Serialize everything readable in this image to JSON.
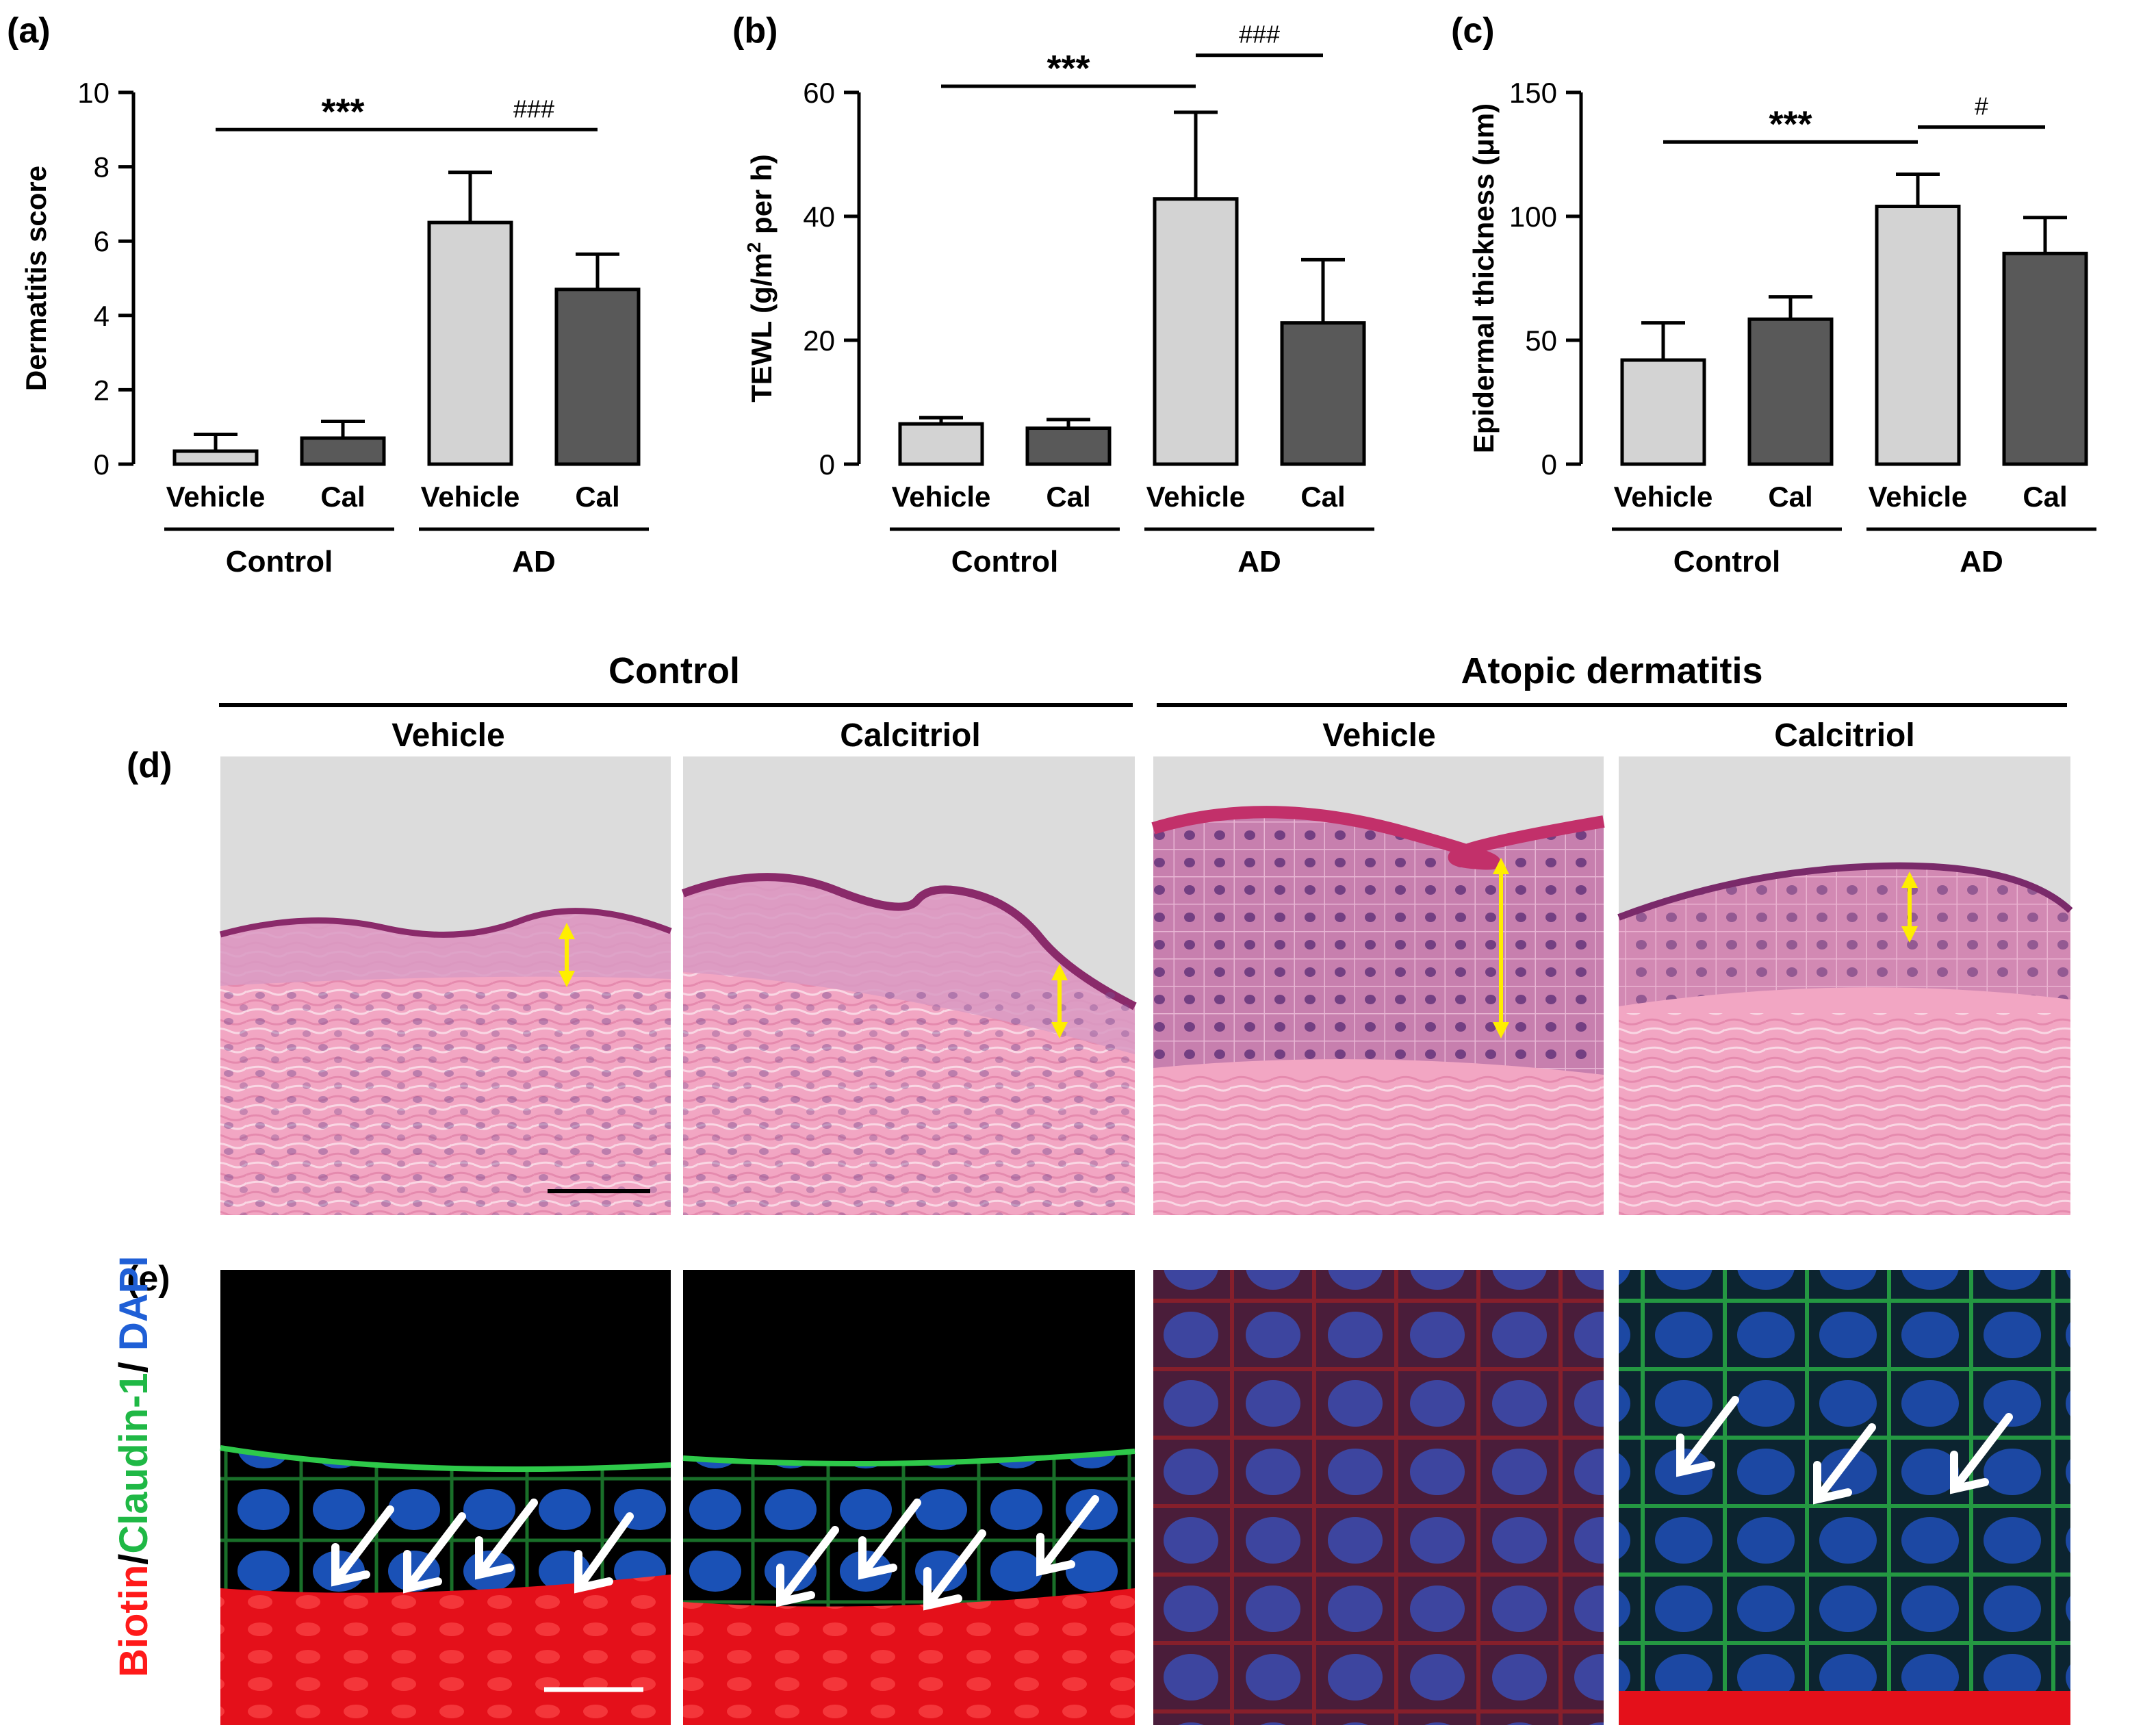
{
  "charts": [
    {
      "panel_label": "(a)",
      "type": "bar",
      "ylabel": "Dermatitis score",
      "ylim": [
        0,
        10
      ],
      "yticks": [
        0,
        2,
        4,
        6,
        8,
        10
      ],
      "categories": [
        "Vehicle",
        "Cal",
        "Vehicle",
        "Cal"
      ],
      "groups": [
        {
          "label": "Control",
          "span": [
            0,
            1
          ]
        },
        {
          "label": "AD",
          "span": [
            2,
            3
          ]
        }
      ],
      "values": [
        0.35,
        0.7,
        6.5,
        4.7
      ],
      "errors": [
        0.45,
        0.45,
        1.35,
        0.95
      ],
      "significance": [
        {
          "from": 0,
          "to": 2,
          "label": "***",
          "level": 9.0
        },
        {
          "from": 2,
          "to": 3,
          "label": "###",
          "level": 9.0
        }
      ]
    },
    {
      "panel_label": "(b)",
      "type": "bar",
      "ylabel": "TEWL (g/m",
      "ylabel_sup": "2",
      "ylabel_tail": " per h)",
      "ylim": [
        0,
        60
      ],
      "yticks": [
        0,
        20,
        40,
        60
      ],
      "categories": [
        "Vehicle",
        "Cal",
        "Vehicle",
        "Cal"
      ],
      "groups": [
        {
          "label": "Control",
          "span": [
            0,
            1
          ]
        },
        {
          "label": "AD",
          "span": [
            2,
            3
          ]
        }
      ],
      "values": [
        6.5,
        5.8,
        42.8,
        22.8
      ],
      "errors": [
        1.0,
        1.4,
        14.0,
        10.2
      ],
      "significance": [
        {
          "from": 0,
          "to": 2,
          "label": "***",
          "level": 61.0
        },
        {
          "from": 2,
          "to": 3,
          "label": "###",
          "level": 66.0
        }
      ]
    },
    {
      "panel_label": "(c)",
      "type": "bar",
      "ylabel": "Epidermal thickness (μm)",
      "ylim": [
        0,
        150
      ],
      "yticks": [
        0,
        50,
        100,
        150
      ],
      "categories": [
        "Vehicle",
        "Cal",
        "Vehicle",
        "Cal"
      ],
      "groups": [
        {
          "label": "Control",
          "span": [
            0,
            1
          ]
        },
        {
          "label": "AD",
          "span": [
            2,
            3
          ]
        }
      ],
      "values": [
        42,
        58.5,
        104,
        85
      ],
      "errors": [
        15,
        9,
        13,
        14.5
      ],
      "significance": [
        {
          "from": 0,
          "to": 2,
          "label": "***",
          "level": 130
        },
        {
          "from": 2,
          "to": 3,
          "label": "#",
          "level": 136
        }
      ]
    }
  ],
  "micrographs": {
    "header_left": "Control",
    "header_right": "Atopic dermatitis",
    "columns": [
      "Vehicle",
      "Calcitriol",
      "Vehicle",
      "Calcitriol"
    ],
    "panel_d": "(d)",
    "panel_e": "(e)",
    "stain_biotin": "Biotin",
    "stain_slash1": "/",
    "stain_claudin": "Claudin-1",
    "stain_slash2": "/ ",
    "stain_dapi": "DAPI",
    "colors": {
      "he_background": "#dcdcdc",
      "he_tissue": "#f2a6c3",
      "he_stratum": "#8a2a6a",
      "thickness_arrow": "#ffee00",
      "if_background": "#000000",
      "biotin": "#ff1a1a",
      "claudin": "#2ec94a",
      "dapi": "#1f5fd6",
      "if_arrow": "#ffffff"
    }
  }
}
